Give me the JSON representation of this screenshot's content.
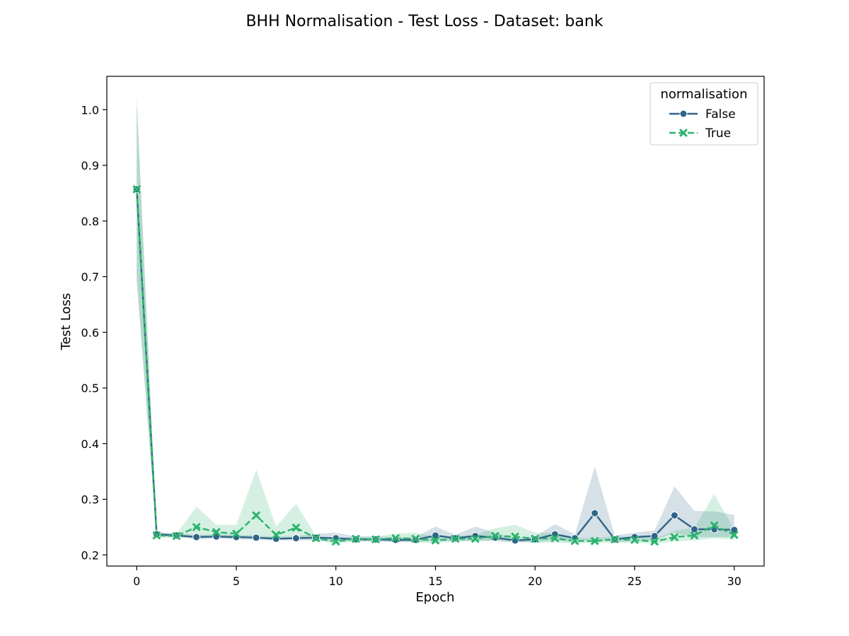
{
  "chart_data": {
    "type": "line",
    "title": "BHH Normalisation - Test Loss - Dataset: bank",
    "xlabel": "Epoch",
    "ylabel": "Test Loss",
    "xlim": [
      -1.5,
      31.5
    ],
    "ylim": [
      0.18,
      1.06
    ],
    "xticks": [
      "0",
      "5",
      "10",
      "15",
      "20",
      "25",
      "30"
    ],
    "yticks": [
      "0.2",
      "0.3",
      "0.4",
      "0.5",
      "0.6",
      "0.7",
      "0.8",
      "0.9",
      "1.0"
    ],
    "grid": false,
    "legend": {
      "title": "normalisation",
      "placement": "top-right"
    },
    "x": [
      0,
      1,
      2,
      3,
      4,
      5,
      6,
      7,
      8,
      9,
      10,
      11,
      12,
      13,
      14,
      15,
      16,
      17,
      18,
      19,
      20,
      21,
      22,
      23,
      24,
      25,
      26,
      27,
      28,
      29,
      30
    ],
    "series": [
      {
        "name": "False",
        "color": "#2f6488",
        "linestyle": "solid",
        "marker": "circle",
        "values": [
          0.857,
          0.237,
          0.235,
          0.232,
          0.233,
          0.232,
          0.231,
          0.229,
          0.23,
          0.231,
          0.23,
          0.228,
          0.228,
          0.227,
          0.227,
          0.235,
          0.23,
          0.234,
          0.231,
          0.226,
          0.228,
          0.237,
          0.23,
          0.275,
          0.228,
          0.232,
          0.234,
          0.271,
          0.246,
          0.246,
          0.245
        ],
        "ci_lower": [
          0.7,
          0.233,
          0.232,
          0.228,
          0.229,
          0.228,
          0.227,
          0.226,
          0.226,
          0.226,
          0.224,
          0.224,
          0.224,
          0.223,
          0.223,
          0.225,
          0.225,
          0.226,
          0.225,
          0.222,
          0.223,
          0.226,
          0.223,
          0.228,
          0.223,
          0.225,
          0.226,
          0.24,
          0.232,
          0.232,
          0.232
        ],
        "ci_upper": [
          1.02,
          0.241,
          0.239,
          0.236,
          0.237,
          0.236,
          0.235,
          0.233,
          0.234,
          0.238,
          0.24,
          0.233,
          0.233,
          0.232,
          0.232,
          0.251,
          0.236,
          0.251,
          0.24,
          0.23,
          0.233,
          0.255,
          0.237,
          0.359,
          0.235,
          0.24,
          0.244,
          0.323,
          0.279,
          0.278,
          0.272
        ]
      },
      {
        "name": "True",
        "color": "#2bb36e",
        "linestyle": "dashed",
        "marker": "x",
        "values": [
          0.857,
          0.235,
          0.234,
          0.25,
          0.241,
          0.238,
          0.271,
          0.236,
          0.249,
          0.23,
          0.224,
          0.229,
          0.228,
          0.23,
          0.229,
          0.226,
          0.229,
          0.229,
          0.234,
          0.233,
          0.229,
          0.23,
          0.225,
          0.225,
          0.228,
          0.227,
          0.224,
          0.232,
          0.235,
          0.253,
          0.236
        ],
        "ci_lower": [
          0.69,
          0.231,
          0.231,
          0.233,
          0.232,
          0.229,
          0.234,
          0.229,
          0.231,
          0.226,
          0.22,
          0.225,
          0.224,
          0.224,
          0.223,
          0.221,
          0.224,
          0.224,
          0.226,
          0.224,
          0.222,
          0.222,
          0.221,
          0.221,
          0.222,
          0.222,
          0.22,
          0.224,
          0.226,
          0.23,
          0.227
        ],
        "ci_upper": [
          1.02,
          0.239,
          0.238,
          0.287,
          0.254,
          0.254,
          0.353,
          0.251,
          0.292,
          0.234,
          0.229,
          0.233,
          0.233,
          0.238,
          0.24,
          0.232,
          0.234,
          0.236,
          0.248,
          0.254,
          0.24,
          0.239,
          0.23,
          0.23,
          0.234,
          0.233,
          0.229,
          0.243,
          0.249,
          0.309,
          0.245
        ]
      }
    ]
  }
}
